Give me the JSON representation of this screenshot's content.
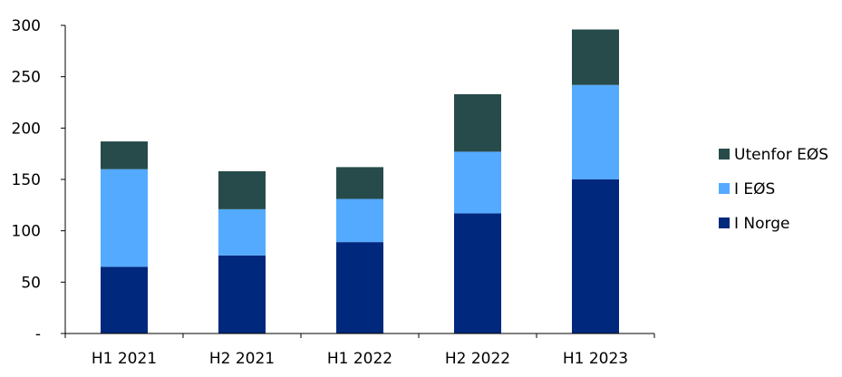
{
  "chart_data": {
    "type": "bar",
    "stacked": true,
    "categories": [
      "H1 2021",
      "H2 2021",
      "H1 2022",
      "H2 2022",
      "H1 2023"
    ],
    "series": [
      {
        "name": "I Norge",
        "color": "#00287D",
        "values": [
          65,
          76,
          89,
          117,
          150
        ]
      },
      {
        "name": "I EØS",
        "color": "#54AAFF",
        "values": [
          95,
          45,
          42,
          60,
          92
        ]
      },
      {
        "name": "Utenfor EØS",
        "color": "#274B4A",
        "values": [
          27,
          37,
          31,
          56,
          54
        ]
      }
    ],
    "ylim": [
      0,
      300
    ],
    "yticks": [
      0,
      50,
      100,
      150,
      200,
      250,
      300
    ],
    "ytick_labels": [
      "-",
      "50",
      "100",
      "150",
      "200",
      "250",
      "300"
    ],
    "grid": false,
    "legend_position": "right",
    "legend_order": [
      "Utenfor EØS",
      "I EØS",
      "I Norge"
    ],
    "axis_color": "#000000"
  }
}
